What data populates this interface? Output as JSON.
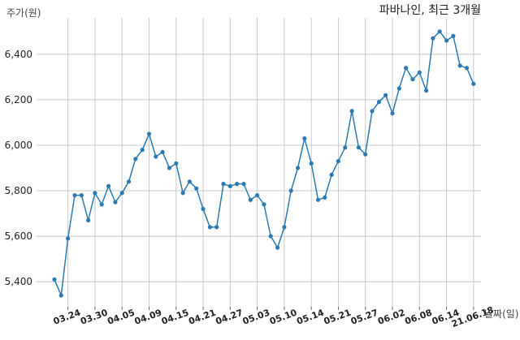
{
  "chart_data": {
    "type": "line",
    "title": "파바나인, 최근 3개월",
    "ylabel": "주가(원)",
    "xlabel": "날짜(일)",
    "ylim": [
      5290,
      6560
    ],
    "yticks": [
      5400,
      5600,
      5800,
      6000,
      6200,
      6400
    ],
    "ytick_labels": [
      "5,400",
      "5,600",
      "5,800",
      "6,000",
      "6,200",
      "6,400"
    ],
    "grid": true,
    "color": "#2b7bb2",
    "tick_indices": [
      2,
      6,
      10,
      14,
      18,
      22,
      26,
      30,
      34,
      38,
      42,
      46,
      50,
      54,
      58,
      62
    ],
    "x": [
      "03.22",
      "03.23",
      "03.24",
      "03.25",
      "03.26",
      "03.29",
      "03.30",
      "03.31",
      "04.01",
      "04.02",
      "04.05",
      "04.06",
      "04.07",
      "04.08",
      "04.09",
      "04.12",
      "04.13",
      "04.14",
      "04.15",
      "04.16",
      "04.19",
      "04.20",
      "04.21",
      "04.22",
      "04.23",
      "04.26",
      "04.27",
      "04.28",
      "04.29",
      "04.30",
      "05.03",
      "05.04",
      "05.06",
      "05.07",
      "05.10",
      "05.11",
      "05.12",
      "05.13",
      "05.14",
      "05.17",
      "05.18",
      "05.20",
      "05.21",
      "05.24",
      "05.25",
      "05.26",
      "05.27",
      "05.28",
      "05.31",
      "06.01",
      "06.02",
      "06.03",
      "06.04",
      "06.07",
      "06.08",
      "06.09",
      "06.10",
      "06.11",
      "06.14",
      "06.15",
      "06.16",
      "06.17",
      "21.06.18"
    ],
    "values": [
      5410,
      5340,
      5590,
      5780,
      5780,
      5670,
      5790,
      5740,
      5820,
      5750,
      5790,
      5840,
      5940,
      5980,
      6050,
      5950,
      5970,
      5900,
      5920,
      5790,
      5840,
      5810,
      5720,
      5640,
      5640,
      5830,
      5820,
      5830,
      5830,
      5760,
      5780,
      5740,
      5600,
      5550,
      5640,
      5800,
      5900,
      6030,
      5920,
      5760,
      5770,
      5870,
      5930,
      5990,
      6150,
      5990,
      5960,
      6150,
      6190,
      6220,
      6140,
      6250,
      6340,
      6290,
      6320,
      6240,
      6470,
      6500,
      6460,
      6480,
      6350,
      6340,
      6270
    ]
  }
}
